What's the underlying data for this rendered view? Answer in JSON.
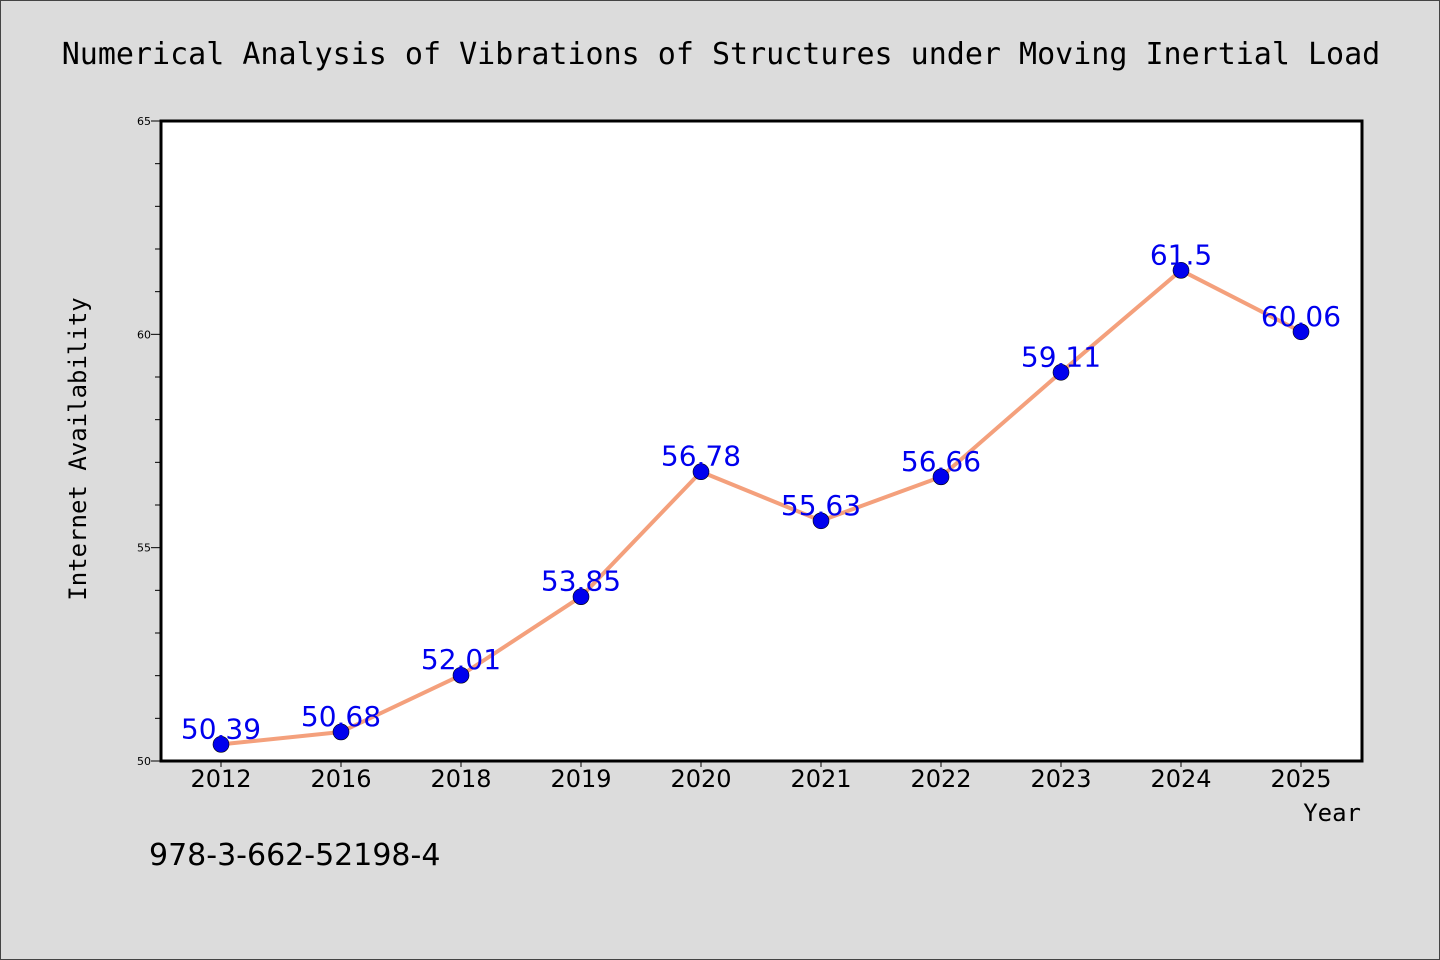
{
  "chart_data": {
    "type": "line",
    "title": "Numerical Analysis of Vibrations of Structures under Moving Inertial Load",
    "xlabel": "Year",
    "ylabel": "Internet Availability",
    "categories": [
      "2012",
      "2016",
      "2018",
      "2019",
      "2020",
      "2021",
      "2022",
      "2023",
      "2024",
      "2025"
    ],
    "series": [
      {
        "values": [
          50.39,
          50.68,
          52.01,
          53.85,
          56.78,
          55.63,
          56.66,
          59.11,
          61.5,
          60.06
        ],
        "data_labels": [
          "50.39",
          "50.68",
          "52.01",
          "53.85",
          "56.78",
          "55.63",
          "56.66",
          "59.11",
          "61.5",
          "60.06"
        ],
        "line_color": "#f4a07c",
        "marker_color": "#0000ee",
        "label_color": "#0000ee"
      }
    ],
    "ylim": [
      50,
      65
    ],
    "y_major_ticks": [
      50,
      55,
      60,
      65
    ],
    "y_tick_labels": [
      "50",
      "55",
      "60",
      "65"
    ],
    "y_minor_step": 1,
    "grid": false,
    "legend": "none"
  },
  "footer": {
    "isbn": "978-3-662-52198-4"
  },
  "colors": {
    "background": "#dcdcdc",
    "plot_background": "#ffffff",
    "axis": "#000000",
    "text": "#000000"
  }
}
